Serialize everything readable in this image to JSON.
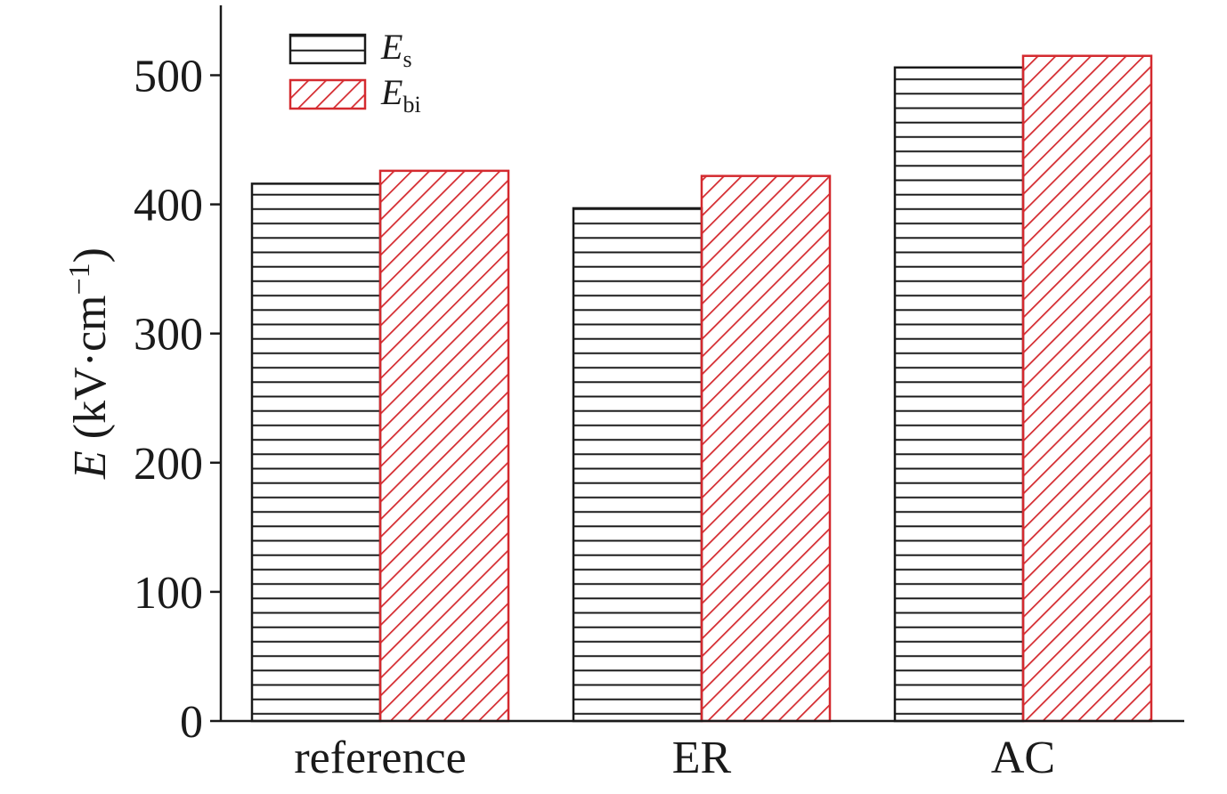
{
  "chart_data": {
    "type": "bar",
    "categories": [
      "reference",
      "ER",
      "AC"
    ],
    "series": [
      {
        "name": "E_s",
        "values": [
          416,
          397,
          506
        ],
        "color": "#1a1a1a",
        "pattern": "horizontal-lines"
      },
      {
        "name": "E_bi",
        "values": [
          426,
          422,
          515
        ],
        "color": "#d42a2f",
        "pattern": "diagonal-lines"
      }
    ],
    "legend": [
      {
        "main": "E",
        "sub": "s"
      },
      {
        "main": "E",
        "sub": "bi"
      }
    ],
    "legend_position": "top-left",
    "ylabel": {
      "var": "E",
      "unit_open": " (kV·cm",
      "unit_exp": "−1",
      "unit_close": ")"
    },
    "ylim": [
      0,
      550
    ],
    "yticks": [
      0,
      100,
      200,
      300,
      400,
      500
    ],
    "ytick_labels": [
      "0",
      "100",
      "200",
      "300",
      "400",
      "500"
    ],
    "grid": false
  }
}
